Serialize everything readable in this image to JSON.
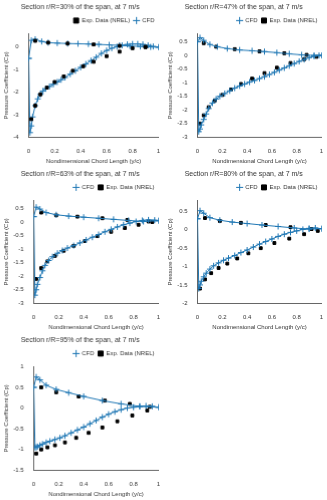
{
  "chart_data": [
    {
      "type": "line",
      "title": "Section r/R=30% of the span, at 7 m/s",
      "xlabel": "Nondimensional Chord Length (y/c)",
      "ylabel": "Pressure Coefficient (Cp)",
      "xlim": [
        0,
        1
      ],
      "xticks": [
        0,
        0.2,
        0.4,
        0.6,
        0.8,
        1
      ],
      "ylim": [
        -4.0,
        0.6
      ],
      "yticks": [
        -4,
        -3,
        -2,
        -1,
        0
      ],
      "grid": false,
      "legend": "upper right",
      "series": [
        {
          "name": "Exp. Data (NREL)",
          "color": "#000000",
          "marker": "square",
          "line_style": "none",
          "x": [
            0.02,
            0.05,
            0.09,
            0.14,
            0.2,
            0.27,
            0.34,
            0.42,
            0.5,
            0.6,
            0.7,
            0.8,
            0.9
          ],
          "values": [
            -3.2,
            -2.6,
            -2.1,
            -1.8,
            -1.55,
            -1.3,
            -1.05,
            -0.85,
            -0.65,
            -0.4,
            -0.2,
            -0.05,
            0.0
          ]
        },
        {
          "name": "Exp. Data (NREL)",
          "color": "#000000",
          "marker": "square",
          "line_style": "none",
          "x": [
            0.05,
            0.15,
            0.3,
            0.5,
            0.7,
            0.9
          ],
          "values": [
            0.28,
            0.2,
            0.16,
            0.12,
            0.06,
            0.01
          ]
        },
        {
          "name": "CFD",
          "color": "#1f77b4",
          "marker": "plus",
          "line_style": "solid",
          "x": [
            0.0,
            0.01,
            0.02,
            0.03,
            0.05,
            0.07,
            0.09,
            0.11,
            0.13,
            0.16,
            0.19,
            0.22,
            0.25,
            0.28,
            0.32,
            0.36,
            0.4,
            0.44,
            0.48,
            0.52,
            0.56,
            0.6,
            0.64,
            0.68,
            0.72,
            0.76,
            0.8,
            0.84,
            0.88,
            0.92,
            0.96,
            1.0
          ],
          "values": [
            -0.5,
            -3.8,
            -3.5,
            -3.1,
            -2.6,
            -2.3,
            -2.1,
            -1.95,
            -1.85,
            -1.75,
            -1.65,
            -1.55,
            -1.45,
            -1.35,
            -1.2,
            -1.05,
            -0.9,
            -0.75,
            -0.6,
            -0.45,
            -0.28,
            -0.15,
            -0.05,
            0.02,
            0.08,
            0.12,
            0.14,
            0.14,
            0.12,
            0.08,
            0.03,
            0.0
          ]
        },
        {
          "name": "CFD",
          "color": "#1f77b4",
          "marker": "plus",
          "line_style": "solid",
          "x": [
            0.0,
            0.02,
            0.05,
            0.1,
            0.15,
            0.22,
            0.3,
            0.38,
            0.46,
            0.54,
            0.62,
            0.7,
            0.78,
            0.86,
            0.94,
            1.0
          ],
          "values": [
            -0.5,
            0.3,
            0.35,
            0.25,
            0.2,
            0.18,
            0.16,
            0.15,
            0.14,
            0.12,
            0.1,
            0.08,
            0.05,
            0.03,
            0.01,
            0.0
          ]
        }
      ]
    },
    {
      "type": "line",
      "title": "Section r/R=47% of the span, at 7 m/s",
      "xlabel": "Nondimensional Chord Length (y/c)",
      "ylabel": "Pressure Coefficient (Cp)",
      "xlim": [
        0,
        1
      ],
      "xticks": [
        0,
        0.2,
        0.4,
        0.6,
        0.8,
        1
      ],
      "ylim": [
        -3.0,
        0.8
      ],
      "yticks": [
        -3,
        -2.5,
        -2,
        -1.5,
        -1,
        -0.5,
        0,
        0.5
      ],
      "grid": false,
      "legend": "upper right",
      "series": [
        {
          "name": "CFD",
          "color": "#1f77b4",
          "marker": "plus",
          "line_style": "solid",
          "x": [
            0.0,
            0.01,
            0.02,
            0.03,
            0.05,
            0.07,
            0.09,
            0.12,
            0.15,
            0.18,
            0.22,
            0.26,
            0.3,
            0.34,
            0.38,
            0.42,
            0.46,
            0.5,
            0.54,
            0.58,
            0.62,
            0.66,
            0.7,
            0.74,
            0.78,
            0.82,
            0.86,
            0.9,
            0.94,
            0.98,
            1.0
          ],
          "values": [
            0.5,
            -2.8,
            -2.7,
            -2.55,
            -2.35,
            -2.15,
            -1.95,
            -1.75,
            -1.6,
            -1.5,
            -1.4,
            -1.3,
            -1.2,
            -1.12,
            -1.05,
            -0.98,
            -0.92,
            -0.85,
            -0.78,
            -0.7,
            -0.62,
            -0.54,
            -0.46,
            -0.38,
            -0.3,
            -0.22,
            -0.15,
            -0.08,
            -0.03,
            0.0,
            0.0
          ]
        },
        {
          "name": "CFD",
          "color": "#1f77b4",
          "marker": "plus",
          "line_style": "solid",
          "x": [
            0.0,
            0.02,
            0.05,
            0.1,
            0.16,
            0.24,
            0.34,
            0.44,
            0.54,
            0.64,
            0.74,
            0.84,
            0.94,
            1.0
          ],
          "values": [
            0.5,
            0.65,
            0.55,
            0.4,
            0.32,
            0.25,
            0.2,
            0.17,
            0.14,
            0.1,
            0.06,
            0.02,
            0.0,
            0.0
          ]
        },
        {
          "name": "Exp. Data (NREL)",
          "color": "#000000",
          "marker": "square",
          "line_style": "none",
          "x": [
            0.02,
            0.05,
            0.09,
            0.14,
            0.2,
            0.27,
            0.35,
            0.44,
            0.54,
            0.64,
            0.75,
            0.86,
            0.96
          ],
          "values": [
            -2.5,
            -2.2,
            -1.9,
            -1.65,
            -1.45,
            -1.25,
            -1.05,
            -0.85,
            -0.65,
            -0.45,
            -0.28,
            -0.14,
            -0.05
          ]
        },
        {
          "name": "Exp. Data (NREL)",
          "color": "#000000",
          "marker": "square",
          "line_style": "none",
          "x": [
            0.05,
            0.15,
            0.3,
            0.5,
            0.7,
            0.88
          ],
          "values": [
            0.45,
            0.32,
            0.23,
            0.15,
            0.08,
            0.02
          ]
        }
      ]
    },
    {
      "type": "line",
      "title": "Section r/R=63% of the span, at 7 m/s",
      "xlabel": "Nondimensional Chord Length (y/c)",
      "ylabel": "Pressure Coefficient (Cp)",
      "xlim": [
        0,
        1
      ],
      "xticks": [
        0,
        0.2,
        0.4,
        0.6,
        0.8,
        1
      ],
      "ylim": [
        -3.0,
        0.8
      ],
      "yticks": [
        -3,
        -2.5,
        -2,
        -1.5,
        -1,
        -0.5,
        0,
        0.5
      ],
      "grid": false,
      "legend": "upper right",
      "series": [
        {
          "name": "CFD",
          "color": "#1f77b4",
          "marker": "plus",
          "line_style": "solid",
          "x": [
            0.0,
            0.01,
            0.02,
            0.03,
            0.05,
            0.07,
            0.09,
            0.12,
            0.15,
            0.19,
            0.23,
            0.27,
            0.32,
            0.37,
            0.42,
            0.47,
            0.52,
            0.57,
            0.62,
            0.67,
            0.72,
            0.77,
            0.82,
            0.87,
            0.92,
            0.97,
            1.0
          ],
          "values": [
            0.2,
            -2.7,
            -2.5,
            -2.3,
            -2.05,
            -1.8,
            -1.6,
            -1.42,
            -1.28,
            -1.15,
            -1.05,
            -0.96,
            -0.87,
            -0.77,
            -0.66,
            -0.56,
            -0.46,
            -0.36,
            -0.27,
            -0.18,
            -0.1,
            -0.04,
            0.02,
            0.06,
            0.08,
            0.07,
            0.05
          ]
        },
        {
          "name": "CFD",
          "color": "#1f77b4",
          "marker": "plus",
          "line_style": "solid",
          "x": [
            0.0,
            0.02,
            0.05,
            0.1,
            0.18,
            0.28,
            0.4,
            0.52,
            0.64,
            0.76,
            0.88,
            1.0
          ],
          "values": [
            0.2,
            0.55,
            0.48,
            0.35,
            0.27,
            0.22,
            0.18,
            0.14,
            0.1,
            0.06,
            0.02,
            0.05
          ]
        },
        {
          "name": "Exp. Data (NREL)",
          "color": "#000000",
          "marker": "square",
          "line_style": "none",
          "x": [
            0.02,
            0.06,
            0.11,
            0.17,
            0.24,
            0.32,
            0.41,
            0.51,
            0.62,
            0.73,
            0.84,
            0.95
          ],
          "values": [
            -2.1,
            -1.7,
            -1.45,
            -1.25,
            -1.06,
            -0.88,
            -0.7,
            -0.52,
            -0.36,
            -0.22,
            -0.1,
            0.0
          ]
        },
        {
          "name": "Exp. Data (NREL)",
          "color": "#000000",
          "marker": "square",
          "line_style": "none",
          "x": [
            0.06,
            0.18,
            0.35,
            0.55,
            0.75,
            0.92
          ],
          "values": [
            0.35,
            0.25,
            0.2,
            0.14,
            0.08,
            0.02
          ]
        }
      ]
    },
    {
      "type": "line",
      "title": "Section r/R=80% of the span, at 7 m/s",
      "xlabel": "Nondimensional Chord Length (y/c)",
      "ylabel": "Pressure Coefficient (Cp)",
      "xlim": [
        0,
        1
      ],
      "xticks": [
        0,
        0.2,
        0.4,
        0.6,
        0.8,
        1
      ],
      "ylim": [
        -2.0,
        0.8
      ],
      "yticks": [
        -2,
        -1.5,
        -1,
        -0.5,
        0,
        0.5
      ],
      "grid": false,
      "legend": "upper right",
      "series": [
        {
          "name": "CFD",
          "color": "#1f77b4",
          "marker": "plus",
          "line_style": "solid",
          "x": [
            0.0,
            0.01,
            0.02,
            0.03,
            0.05,
            0.07,
            0.1,
            0.13,
            0.17,
            0.21,
            0.25,
            0.3,
            0.35,
            0.4,
            0.45,
            0.5,
            0.55,
            0.6,
            0.65,
            0.7,
            0.75,
            0.8,
            0.85,
            0.9,
            0.95,
            1.0
          ],
          "values": [
            0.3,
            -1.6,
            -1.5,
            -1.4,
            -1.28,
            -1.18,
            -1.07,
            -0.98,
            -0.9,
            -0.83,
            -0.77,
            -0.7,
            -0.62,
            -0.55,
            -0.47,
            -0.39,
            -0.32,
            -0.25,
            -0.18,
            -0.12,
            -0.07,
            -0.03,
            0.01,
            0.04,
            0.05,
            0.03
          ]
        },
        {
          "name": "CFD",
          "color": "#1f77b4",
          "marker": "plus",
          "line_style": "solid",
          "x": [
            0.0,
            0.02,
            0.05,
            0.1,
            0.18,
            0.28,
            0.4,
            0.52,
            0.65,
            0.78,
            0.9,
            1.0
          ],
          "values": [
            0.3,
            0.52,
            0.45,
            0.33,
            0.26,
            0.21,
            0.17,
            0.13,
            0.09,
            0.05,
            0.02,
            0.03
          ]
        },
        {
          "name": "Exp. Data (NREL)",
          "color": "#000000",
          "marker": "square",
          "line_style": "none",
          "x": [
            0.02,
            0.06,
            0.11,
            0.17,
            0.24,
            0.32,
            0.41,
            0.51,
            0.62,
            0.74,
            0.86,
            0.97
          ],
          "values": [
            -1.6,
            -1.35,
            -1.18,
            -1.04,
            -0.92,
            -0.78,
            -0.64,
            -0.5,
            -0.36,
            -0.24,
            -0.12,
            -0.03
          ]
        },
        {
          "name": "Exp. Data (NREL)",
          "color": "#000000",
          "marker": "square",
          "line_style": "none",
          "x": [
            0.06,
            0.18,
            0.35,
            0.55,
            0.75,
            0.92
          ],
          "values": [
            0.32,
            0.24,
            0.19,
            0.13,
            0.07,
            0.02
          ]
        }
      ]
    },
    {
      "type": "line",
      "title": "Section r/R=95% of the span, at 7 m/s",
      "xlabel": "Nondimensional Chord Length (y/c)",
      "ylabel": "Pressure Coefficient (Cp)",
      "xlim": [
        0,
        1
      ],
      "xticks": [
        0,
        0.2,
        0.4,
        0.6,
        0.8,
        1
      ],
      "ylim": [
        -1.5,
        1.0
      ],
      "yticks": [
        -1.5,
        -1,
        -0.5,
        0,
        0.5,
        1.0
      ],
      "grid": false,
      "legend": "upper right",
      "series": [
        {
          "name": "CFD",
          "color": "#1f77b4",
          "marker": "plus",
          "line_style": "solid",
          "x": [
            0.0,
            0.01,
            0.02,
            0.03,
            0.05,
            0.07,
            0.1,
            0.13,
            0.17,
            0.21,
            0.25,
            0.3,
            0.35,
            0.4,
            0.45,
            0.5,
            0.55,
            0.6,
            0.65,
            0.7,
            0.75,
            0.8,
            0.85,
            0.9,
            0.95,
            1.0
          ],
          "values": [
            0.5,
            -0.95,
            -0.95,
            -0.93,
            -0.9,
            -0.87,
            -0.83,
            -0.8,
            -0.76,
            -0.72,
            -0.67,
            -0.6,
            -0.53,
            -0.46,
            -0.38,
            -0.3,
            -0.22,
            -0.15,
            -0.09,
            -0.04,
            0.0,
            0.02,
            0.04,
            0.05,
            0.04,
            0.02
          ]
        },
        {
          "name": "CFD",
          "color": "#1f77b4",
          "marker": "plus",
          "line_style": "solid",
          "x": [
            0.0,
            0.02,
            0.05,
            0.1,
            0.18,
            0.28,
            0.4,
            0.55,
            0.7,
            0.85,
            1.0
          ],
          "values": [
            0.5,
            0.75,
            0.68,
            0.55,
            0.45,
            0.37,
            0.28,
            0.18,
            0.1,
            0.04,
            0.02
          ]
        },
        {
          "name": "Exp. Data (NREL)",
          "color": "#000000",
          "marker": "square",
          "line_style": "none",
          "x": [
            0.02,
            0.06,
            0.11,
            0.17,
            0.25,
            0.34,
            0.44,
            0.55,
            0.67,
            0.79,
            0.91
          ],
          "values": [
            -1.1,
            -1.0,
            -0.95,
            -0.9,
            -0.83,
            -0.72,
            -0.6,
            -0.47,
            -0.32,
            -0.18,
            -0.06
          ]
        },
        {
          "name": "Exp. Data (NREL)",
          "color": "#000000",
          "marker": "square",
          "line_style": "none",
          "x": [
            0.06,
            0.18,
            0.36,
            0.57,
            0.77,
            0.93
          ],
          "values": [
            0.5,
            0.38,
            0.28,
            0.18,
            0.1,
            0.03
          ]
        }
      ]
    }
  ]
}
